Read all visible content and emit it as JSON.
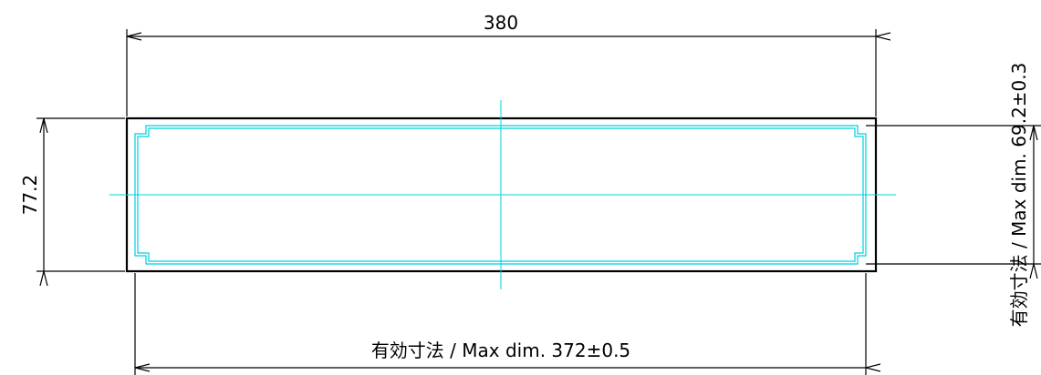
{
  "dimensions": {
    "overall_width": "380",
    "overall_height": "77.2",
    "max_width": "有効寸法 / Max dim. 372±0.5",
    "max_height": "有効寸法 / Max dim. 69.2±0.3"
  },
  "colors": {
    "outline": "#000000",
    "inner_outline": "#00d0e0",
    "centerline": "#00d0e0",
    "dimension_line": "#000000"
  }
}
